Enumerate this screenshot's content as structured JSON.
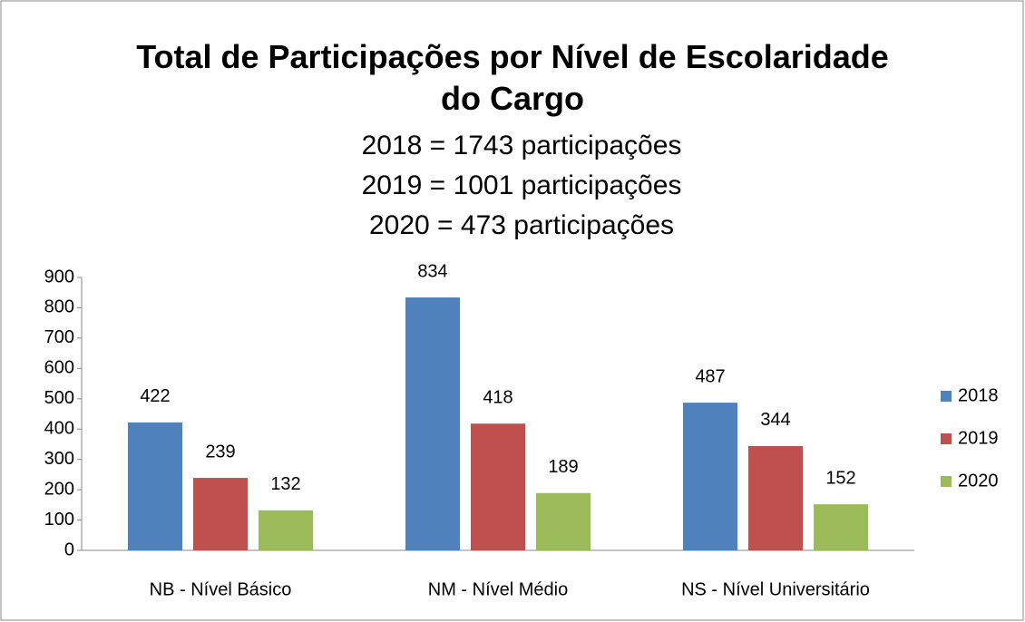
{
  "chart_data": {
    "type": "bar",
    "title": "Total de Participações por Nível de Escolaridade do Cargo",
    "subtitle": [
      "2018 = 1743 participações",
      "2019 = 1001 participações",
      "2020 = 473 participações"
    ],
    "categories": [
      "NB - Nível Básico",
      "NM - Nível Médio",
      "NS - Nível Universitário"
    ],
    "series": [
      {
        "name": "2018",
        "color": "#4f81bd",
        "values": [
          422,
          834,
          487
        ]
      },
      {
        "name": "2019",
        "color": "#c0504d",
        "values": [
          239,
          418,
          344
        ]
      },
      {
        "name": "2020",
        "color": "#9bbb59",
        "values": [
          132,
          189,
          152
        ]
      }
    ],
    "ylim": [
      0,
      900
    ],
    "yticks": [
      0,
      100,
      200,
      300,
      400,
      500,
      600,
      700,
      800,
      900
    ],
    "legend": "right"
  }
}
